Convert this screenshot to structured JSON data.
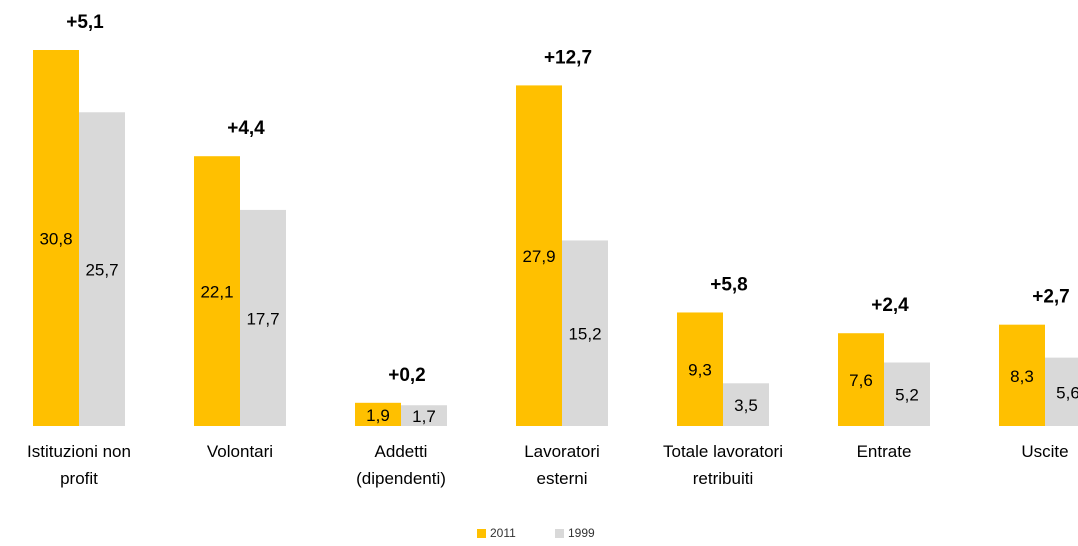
{
  "chart_data": {
    "type": "bar",
    "categories": [
      "Istituzioni non\nprofit",
      "Volontari",
      "Addetti\n(dipendenti)",
      "Lavoratori\nesterni",
      "Totale lavoratori\nretribuiti",
      "Entrate",
      "Uscite"
    ],
    "series": [
      {
        "name": "2011",
        "color": "#ffc000",
        "values": [
          30.8,
          22.1,
          1.9,
          27.9,
          9.3,
          7.6,
          8.3
        ],
        "value_labels": [
          "30,8",
          "22,1",
          "1,9",
          "27,9",
          "9,3",
          "7,6",
          "8,3"
        ]
      },
      {
        "name": "1999",
        "color": "#d9d9d9",
        "values": [
          25.7,
          17.7,
          1.7,
          15.2,
          3.5,
          5.2,
          5.6
        ],
        "value_labels": [
          "25,7",
          "17,7",
          "1,7",
          "15,2",
          "3,5",
          "5,2",
          "5,6"
        ]
      }
    ],
    "annotations": [
      "+5,1",
      "+4,4",
      "+0,2",
      "+12,7",
      "+5,8",
      "+2,4",
      "+2,7"
    ]
  }
}
